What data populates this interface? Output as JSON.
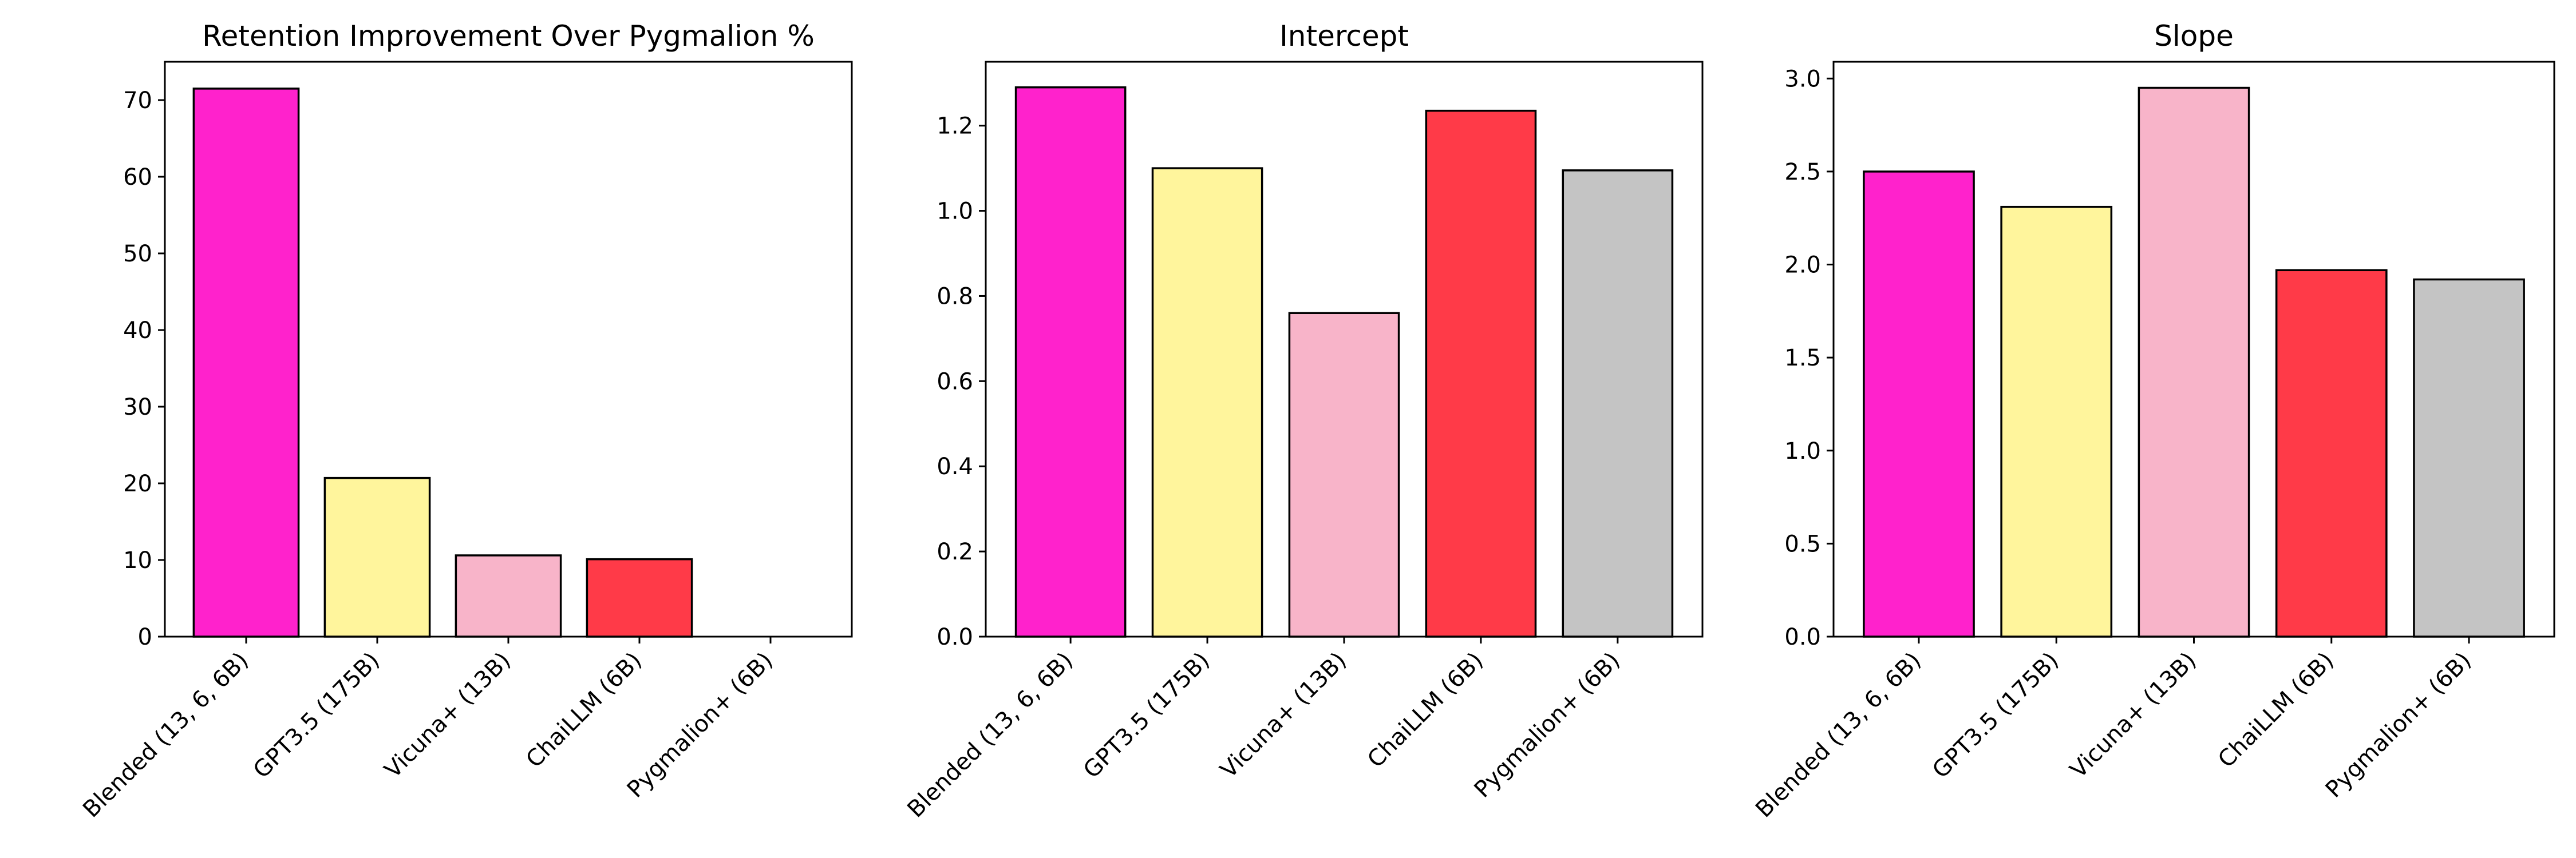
{
  "chart_data": [
    {
      "type": "bar",
      "title": "Retention Improvement Over Pygmalion %",
      "xlabel": "",
      "ylabel": "",
      "categories": [
        "Blended (13, 6, 6B)",
        "GPT3.5 (175B)",
        "Vicuna+ (13B)",
        "ChaiLLM (6B)",
        "Pygmalion+ (6B)"
      ],
      "values": [
        71.5,
        20.7,
        10.6,
        10.1,
        0.0
      ],
      "colors": [
        "#ff22cc",
        "#fff59c",
        "#f8b4c9",
        "#ff3a48",
        "#c4c4c4"
      ],
      "ylim": [
        0,
        75
      ],
      "yticks": [
        "0",
        "10",
        "20",
        "30",
        "40",
        "50",
        "60",
        "70"
      ],
      "grid": false,
      "legend": "none"
    },
    {
      "type": "bar",
      "title": "Intercept",
      "xlabel": "",
      "ylabel": "",
      "categories": [
        "Blended (13, 6, 6B)",
        "GPT3.5 (175B)",
        "Vicuna+ (13B)",
        "ChaiLLM (6B)",
        "Pygmalion+ (6B)"
      ],
      "values": [
        1.29,
        1.1,
        0.76,
        1.235,
        1.095
      ],
      "colors": [
        "#ff22cc",
        "#fff59c",
        "#f8b4c9",
        "#ff3a48",
        "#c4c4c4"
      ],
      "ylim": [
        0,
        1.35
      ],
      "yticks": [
        "0.0",
        "0.2",
        "0.4",
        "0.6",
        "0.8",
        "1.0",
        "1.2"
      ],
      "grid": false,
      "legend": "none"
    },
    {
      "type": "bar",
      "title": "Slope",
      "xlabel": "",
      "ylabel": "",
      "categories": [
        "Blended (13, 6, 6B)",
        "GPT3.5 (175B)",
        "Vicuna+ (13B)",
        "ChaiLLM (6B)",
        "Pygmalion+ (6B)"
      ],
      "values": [
        2.5,
        2.31,
        2.95,
        1.97,
        1.92
      ],
      "colors": [
        "#ff22cc",
        "#fff59c",
        "#f8b4c9",
        "#ff3a48",
        "#c4c4c4"
      ],
      "ylim": [
        0,
        3.09
      ],
      "yticks": [
        "0.0",
        "0.5",
        "1.0",
        "1.5",
        "2.0",
        "2.5",
        "3.0"
      ],
      "grid": false,
      "legend": "none"
    }
  ]
}
